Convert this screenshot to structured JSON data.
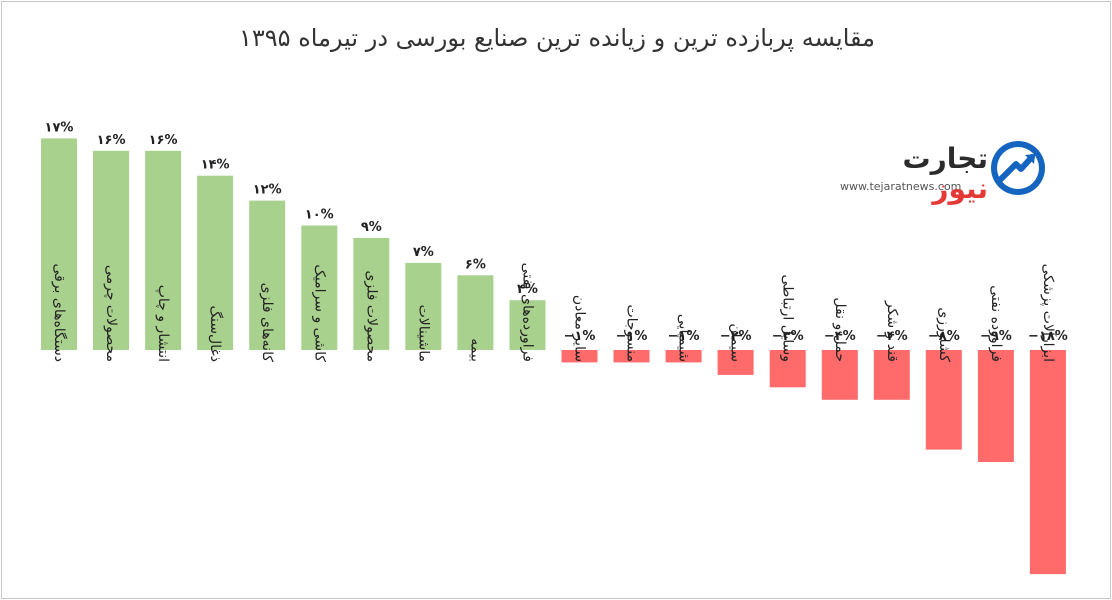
{
  "chart_data": {
    "type": "bar",
    "title": "مقایسه پربازده ترین و زیانده ترین صنایع بورسی در  تیرماه ۱۳۹۵",
    "categories": [
      "دستگاه‌های برقی",
      "محصولات چرمی",
      "انتشار و چاپ",
      "ذغال‌سنگ",
      "کانه‌های فلزی",
      "کاشی و سرامیک",
      "محصولات فلزی",
      "ماشینالات",
      "بیمه",
      "فراورده‌های نفتی",
      "سایر معادن",
      "منسوجات",
      "شیمیایی",
      "سیمان",
      "وسایل ارتباطی",
      "حمل و نقل",
      "قند و شکر",
      "کشاورزی",
      "فراورده نفتی",
      "ابزارآلات پزشکی"
    ],
    "values": [
      17,
      16,
      16,
      14,
      12,
      10,
      9,
      7,
      6,
      4,
      -1,
      -1,
      -1,
      -2,
      -3,
      -4,
      -4,
      -8,
      -9,
      -18
    ],
    "value_labels": [
      "۱۷%",
      "۱۶%",
      "۱۶%",
      "۱۴%",
      "۱۲%",
      "۱۰%",
      "۹%",
      "۷%",
      "۶%",
      "۴%",
      "−۱%",
      "−۱%",
      "−۱%",
      "−۲%",
      "−۳%",
      "−۴%",
      "−۴%",
      "−۸%",
      "−۹%",
      "−۱۸%"
    ],
    "ylim": [
      -18,
      17
    ],
    "xlabel": "",
    "ylabel": "",
    "grid": false,
    "legend": "none",
    "colors": {
      "positive": "#a9d18e",
      "negative": "#ff6b6b"
    }
  },
  "logo": {
    "word_black": "تجارت",
    "word_red": "نیوز",
    "url": "www.tejaratnews.com"
  }
}
